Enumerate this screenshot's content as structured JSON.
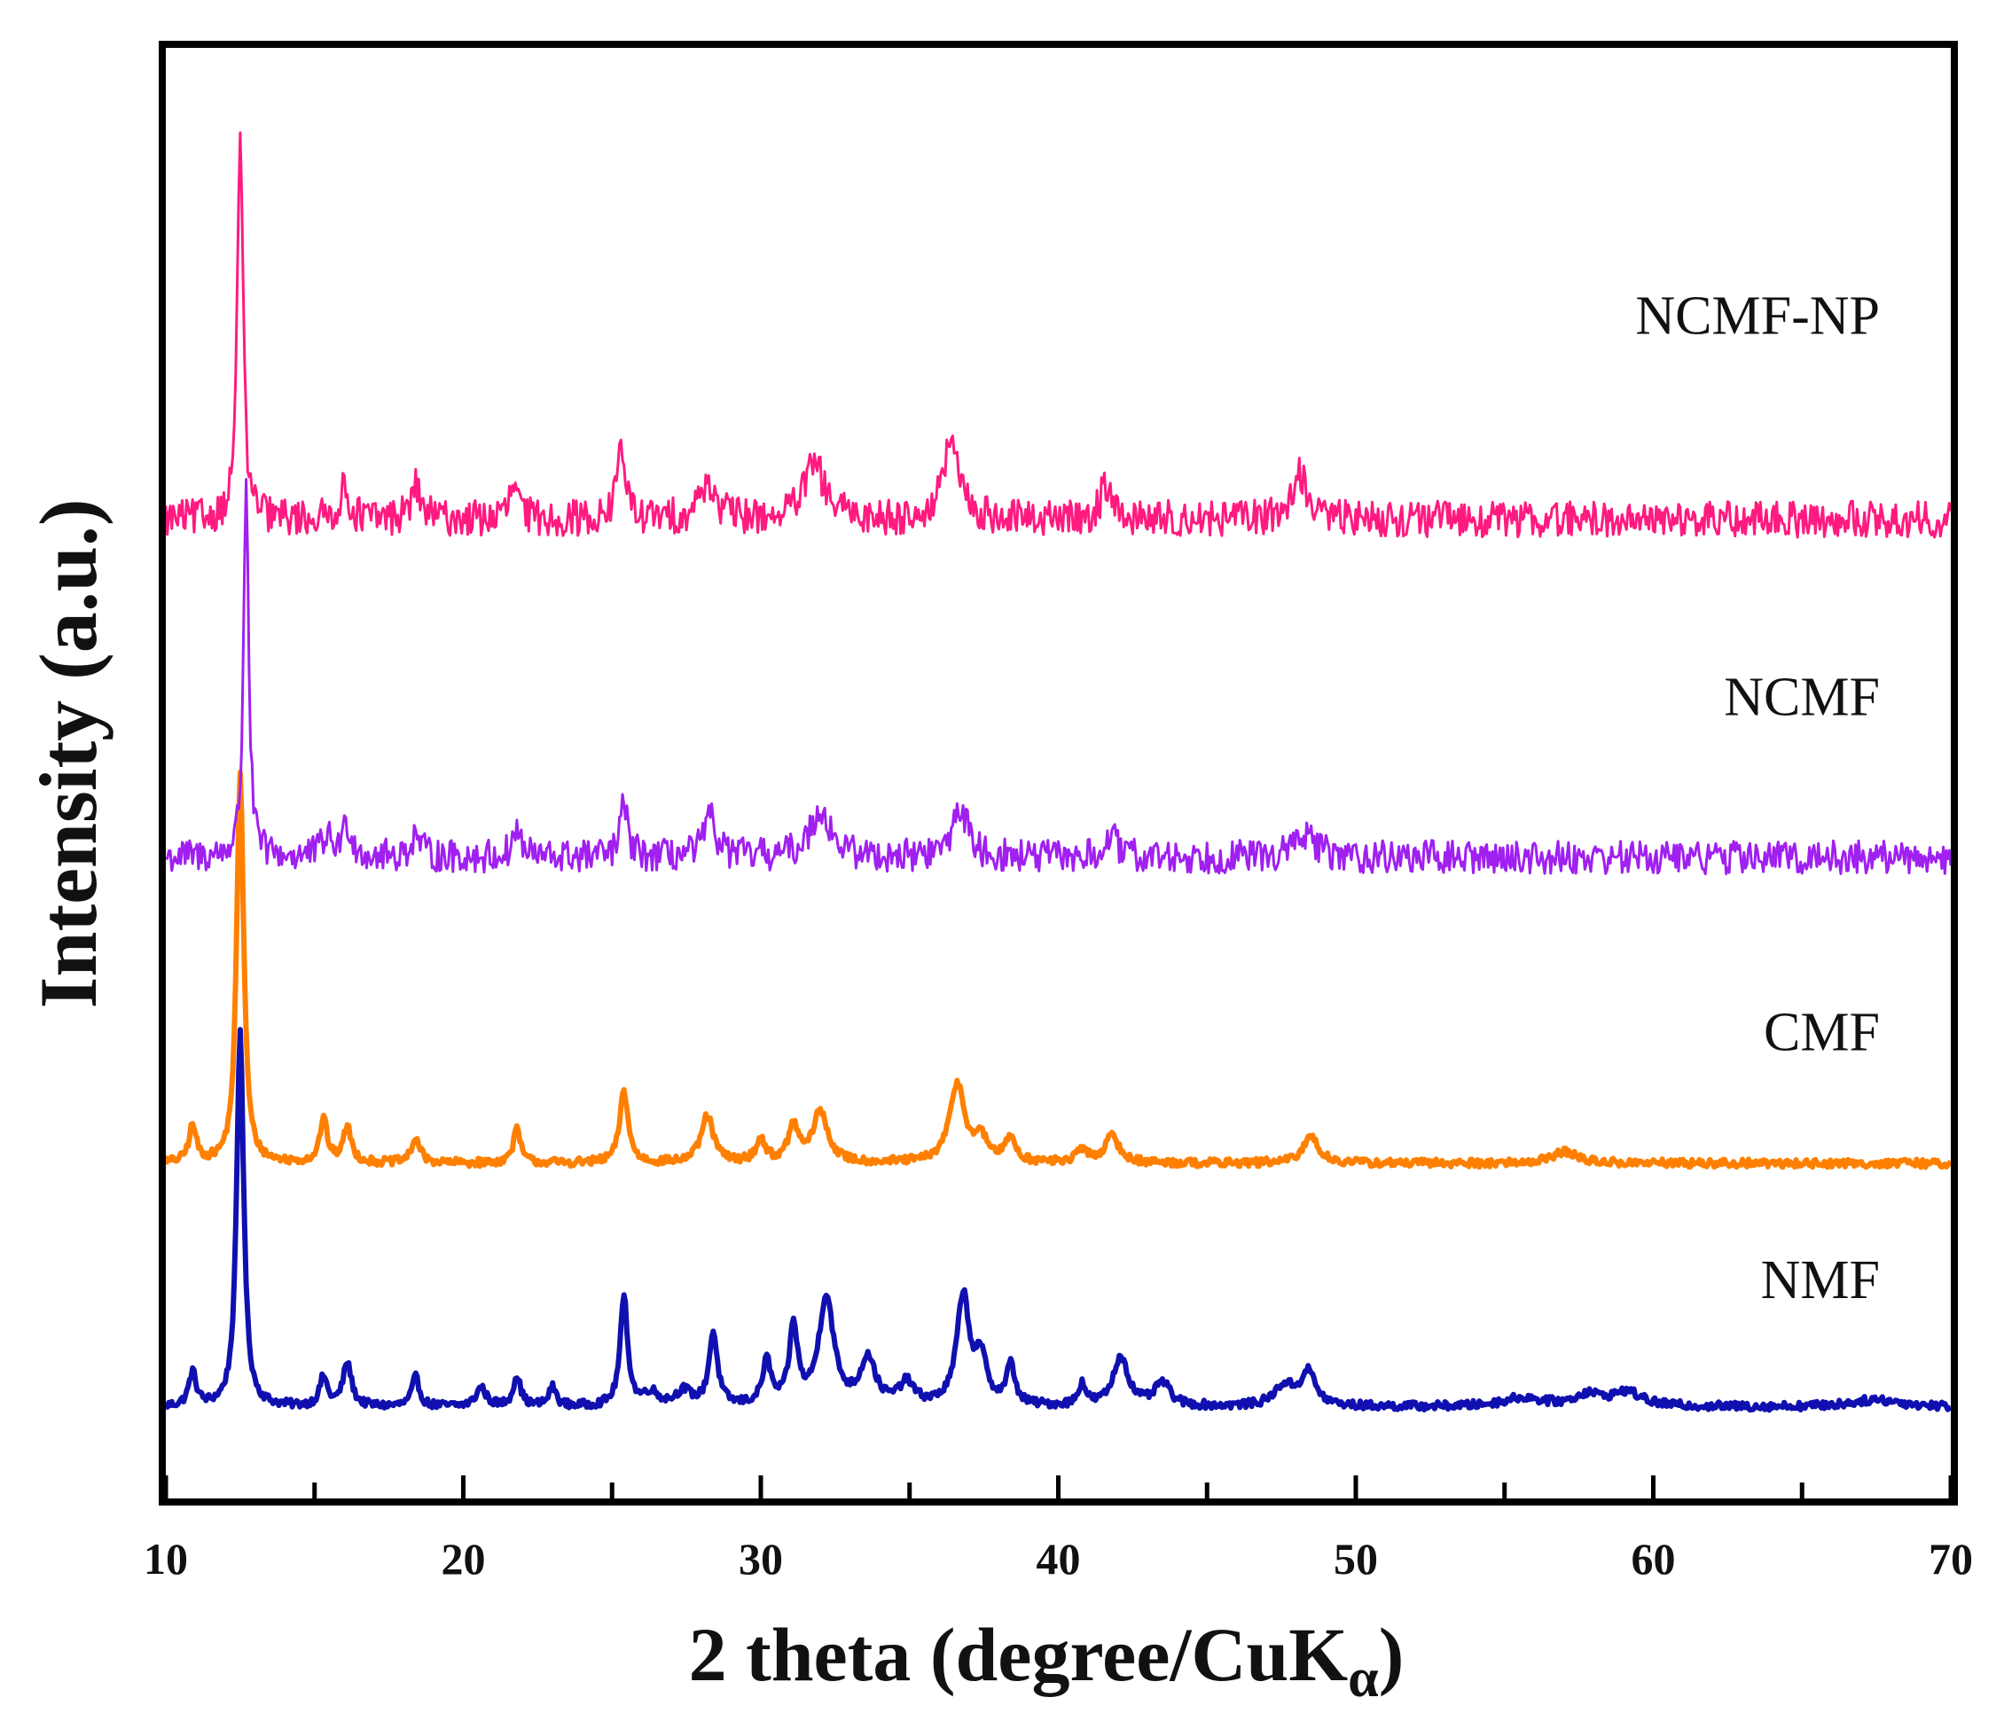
{
  "chart_data": {
    "type": "line",
    "title": "",
    "xlabel": "2 theta (degree/CuK",
    "xlabel_subscript": "α",
    "xlabel_suffix": ")",
    "ylabel": "Intensity (a.u.)",
    "xlim": [
      10,
      70
    ],
    "ylim": [
      0,
      100
    ],
    "x_ticks": [
      10,
      20,
      30,
      40,
      50,
      60,
      70
    ],
    "x_minor_step": 5,
    "y_ticks_shown": false,
    "grid": false,
    "series": [
      {
        "name": "NMF",
        "color": "#1010b0",
        "baseline": 6.3,
        "noise": 0.28,
        "peaks": [
          [
            10.9,
            2.3,
            0.15
          ],
          [
            12.5,
            26.0,
            0.14
          ],
          [
            15.3,
            2.0,
            0.15
          ],
          [
            16.1,
            3.0,
            0.17
          ],
          [
            18.4,
            2.0,
            0.15
          ],
          [
            20.6,
            1.3,
            0.2
          ],
          [
            21.8,
            2.1,
            0.15
          ],
          [
            23.0,
            1.3,
            0.15
          ],
          [
            25.4,
            7.5,
            0.15
          ],
          [
            26.3,
            0.9,
            0.3
          ],
          [
            27.4,
            1.0,
            0.3
          ],
          [
            28.4,
            5.0,
            0.17
          ],
          [
            30.2,
            3.0,
            0.17
          ],
          [
            31.1,
            5.3,
            0.17
          ],
          [
            32.2,
            7.5,
            0.3
          ],
          [
            33.6,
            3.2,
            0.3
          ],
          [
            34.9,
            1.5,
            0.3
          ],
          [
            36.8,
            7.5,
            0.25
          ],
          [
            37.4,
            3.0,
            0.25
          ],
          [
            38.4,
            2.7,
            0.17
          ],
          [
            40.8,
            1.5,
            0.15
          ],
          [
            42.1,
            3.4,
            0.3
          ],
          [
            43.5,
            1.6,
            0.3
          ],
          [
            47.6,
            1.4,
            0.4
          ],
          [
            48.4,
            2.3,
            0.3
          ],
          [
            55.6,
            0.6,
            0.8
          ],
          [
            57.8,
            0.8,
            0.5
          ],
          [
            59.1,
            1.0,
            0.6
          ],
          [
            67.5,
            0.5,
            1.0
          ]
        ]
      },
      {
        "name": "CMF",
        "color": "#ff8000",
        "baseline": 23.1,
        "noise": 0.28,
        "peaks": [
          [
            10.9,
            2.5,
            0.15
          ],
          [
            12.5,
            27.0,
            0.14
          ],
          [
            15.3,
            3.0,
            0.15
          ],
          [
            16.1,
            2.4,
            0.17
          ],
          [
            18.4,
            1.7,
            0.17
          ],
          [
            21.8,
            2.3,
            0.15
          ],
          [
            25.4,
            5.0,
            0.17
          ],
          [
            28.2,
            3.2,
            0.25
          ],
          [
            30.0,
            1.5,
            0.2
          ],
          [
            31.1,
            2.5,
            0.2
          ],
          [
            32.0,
            3.5,
            0.3
          ],
          [
            36.6,
            5.4,
            0.3
          ],
          [
            37.4,
            1.5,
            0.3
          ],
          [
            38.4,
            1.7,
            0.2
          ],
          [
            40.8,
            0.9,
            0.2
          ],
          [
            41.8,
            1.8,
            0.3
          ],
          [
            48.5,
            1.9,
            0.3
          ],
          [
            57.0,
            0.8,
            0.5
          ]
        ]
      },
      {
        "name": "NCMF",
        "color": "#a020f0",
        "baseline": 44.2,
        "noise": 1.15,
        "peaks": [
          [
            12.7,
            26.5,
            0.1
          ],
          [
            15.4,
            1.3,
            0.2
          ],
          [
            16.1,
            2.2,
            0.2
          ],
          [
            18.4,
            1.5,
            0.2
          ],
          [
            21.8,
            1.9,
            0.17
          ],
          [
            25.4,
            3.6,
            0.15
          ],
          [
            28.3,
            2.6,
            0.25
          ],
          [
            32.0,
            3.3,
            0.4
          ],
          [
            36.7,
            3.5,
            0.3
          ],
          [
            41.8,
            1.5,
            0.2
          ],
          [
            48.3,
            1.6,
            0.4
          ]
        ]
      },
      {
        "name": "NCMF-NP",
        "color": "#ff1a80",
        "baseline": 67.5,
        "noise": 1.25,
        "peaks": [
          [
            12.5,
            27.5,
            0.11
          ],
          [
            16.0,
            2.0,
            0.2
          ],
          [
            18.4,
            2.2,
            0.2
          ],
          [
            21.7,
            2.3,
            0.17
          ],
          [
            25.3,
            5.5,
            0.15
          ],
          [
            28.2,
            2.6,
            0.3
          ],
          [
            31.8,
            3.8,
            0.4
          ],
          [
            36.4,
            5.5,
            0.3
          ],
          [
            41.6,
            2.5,
            0.2
          ],
          [
            48.1,
            3.1,
            0.3
          ]
        ]
      }
    ]
  }
}
